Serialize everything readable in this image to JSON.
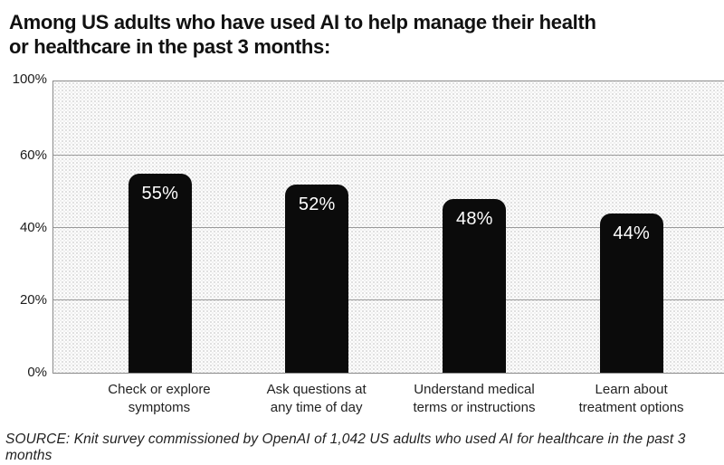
{
  "header": {
    "title_line1": "Among US adults who have used AI to help manage their health",
    "title_line2": "or healthcare in the past 3 months:"
  },
  "footer": {
    "source": "SOURCE: Knit survey commissioned by OpenAI of 1,042 US adults who used AI for healthcare in the past 3 months"
  },
  "colors": {
    "bar": "#0b0b0b",
    "bar_label": "#ffffff",
    "gridline": "#9a9a9a",
    "plot_border": "#8b8b8b"
  },
  "chart_data": {
    "type": "bar",
    "title": "Among US adults who have used AI to help manage their health or healthcare in the past 3 months:",
    "categories": [
      "Check or explore\nsymptoms",
      "Ask questions at\nany time of day",
      "Understand medical\nterms or instructions",
      "Learn about\ntreatment options"
    ],
    "values": [
      55,
      52,
      48,
      44
    ],
    "value_labels": [
      "55%",
      "52%",
      "48%",
      "44%"
    ],
    "xlabel": "",
    "ylabel": "",
    "ylim": [
      0,
      100
    ],
    "yticks": [
      0,
      20,
      40,
      60,
      100
    ],
    "ytick_labels": [
      "0%",
      "20%",
      "40%",
      "60%",
      "100%"
    ],
    "grid": "horizontal",
    "legend": "none",
    "bar_color": "#0b0b0b",
    "label_position": "inside-top",
    "axis_note": "y-axis labels 0/20/40/60/100 are evenly spaced (interval 60-100 compressed)",
    "source": "SOURCE: Knit survey commissioned by OpenAI of 1,042 US adults who used AI for healthcare in the past 3 months"
  }
}
